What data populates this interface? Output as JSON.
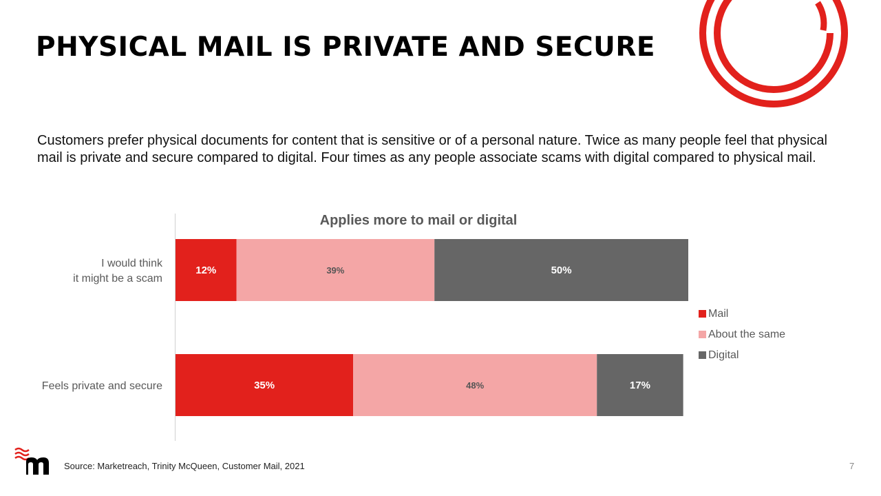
{
  "slide": {
    "title": "PHYSICAL MAIL IS PRIVATE AND SECURE",
    "body": "Customers prefer physical documents for content that is sensitive or of a personal nature. Twice as many people feel that physical mail is private and secure compared to digital. Four times as any people associate scams with digital compared to physical mail.",
    "source": "Source: Marketreach, Trinity McQueen, Customer Mail, 2021",
    "page_number": "7",
    "logo_icon": "marketreach-m-logo-icon",
    "decoration_icon": "concentric-rings-icon",
    "accent_color": "#e2211c"
  },
  "chart_data": {
    "type": "bar",
    "orientation": "horizontal",
    "stacked": true,
    "title": "Applies more to mail or digital",
    "categories": [
      [
        "I would think",
        "it might be a scam"
      ],
      [
        "Feels private and secure"
      ]
    ],
    "series": [
      {
        "name": "Mail",
        "color": "#e2211c",
        "label_color": "#ffffff",
        "values": [
          12,
          35
        ],
        "labels": [
          "12%",
          "35%"
        ]
      },
      {
        "name": "About the same",
        "color": "#f4a6a6",
        "label_color": "#555555",
        "values": [
          39,
          48
        ],
        "labels": [
          "39%",
          "48%"
        ]
      },
      {
        "name": "Digital",
        "color": "#666666",
        "label_color": "#ffffff",
        "values": [
          50,
          17
        ],
        "labels": [
          "50%",
          "17%"
        ]
      }
    ],
    "xlim": [
      0,
      101
    ],
    "grid": false,
    "legend": "right"
  }
}
